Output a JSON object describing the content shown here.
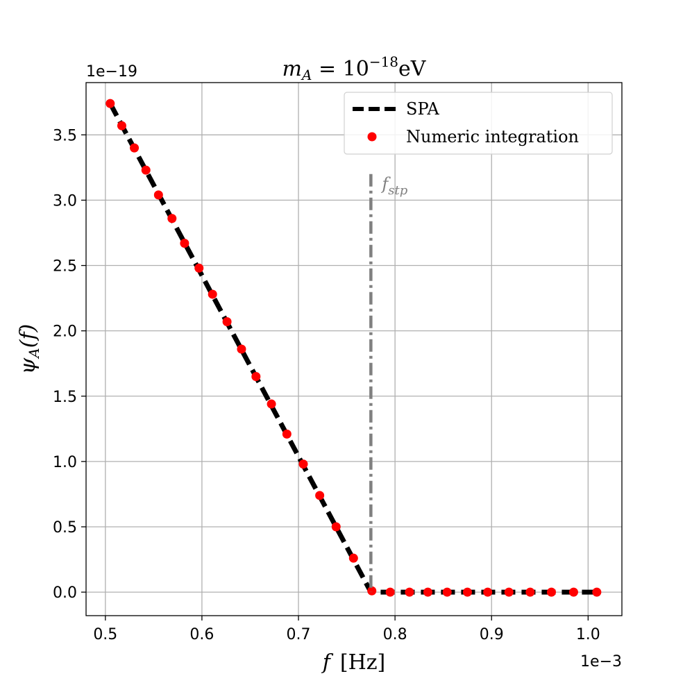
{
  "chart_data": {
    "type": "line",
    "title": "m_A = 10^-18 eV",
    "title_parts": {
      "base": "m",
      "sub": "A",
      "eq": " = 10",
      "sup": "−18",
      "unit": "eV"
    },
    "xlabel": "f  [Hz]",
    "xlabel_parts": {
      "var": "f",
      "unit": "[Hz]"
    },
    "ylabel": "ψ_A(f)",
    "ylabel_parts": {
      "base": "ψ",
      "sub": "A",
      "arg": "(f)"
    },
    "x_offset_label": "1e−3",
    "y_offset_label": "1e−19",
    "xlim": [
      0.48,
      1.035
    ],
    "ylim": [
      -0.18,
      3.9
    ],
    "x_ticks": [
      0.5,
      0.6,
      0.7,
      0.8,
      0.9,
      1.0
    ],
    "x_tick_labels": [
      "0.5",
      "0.6",
      "0.7",
      "0.8",
      "0.9",
      "1.0"
    ],
    "y_ticks": [
      0.0,
      0.5,
      1.0,
      1.5,
      2.0,
      2.5,
      3.0,
      3.5
    ],
    "y_tick_labels": [
      "0.0",
      "0.5",
      "1.0",
      "1.5",
      "2.0",
      "2.5",
      "3.0",
      "3.5"
    ],
    "grid": true,
    "legend_position": "top-right",
    "series": [
      {
        "name": "SPA",
        "style": "dashed",
        "color": "#000000",
        "x": [
          0.505,
          0.775,
          0.775,
          1.01
        ],
        "y": [
          3.74,
          0.0,
          0.0,
          0.0
        ]
      },
      {
        "name": "Numeric integration",
        "style": "markers",
        "color": "#ff0000",
        "x": [
          0.505,
          0.517,
          0.53,
          0.542,
          0.555,
          0.569,
          0.582,
          0.597,
          0.611,
          0.626,
          0.641,
          0.656,
          0.672,
          0.688,
          0.705,
          0.722,
          0.739,
          0.757,
          0.776,
          0.795,
          0.815,
          0.834,
          0.854,
          0.875,
          0.896,
          0.918,
          0.94,
          0.962,
          0.985,
          1.009
        ],
        "y": [
          3.74,
          3.57,
          3.4,
          3.23,
          3.04,
          2.86,
          2.67,
          2.48,
          2.28,
          2.07,
          1.86,
          1.65,
          1.44,
          1.21,
          0.98,
          0.74,
          0.5,
          0.26,
          0.01,
          0.0,
          0.0,
          0.0,
          0.0,
          0.0,
          0.0,
          0.0,
          0.0,
          0.0,
          0.0,
          0.0
        ]
      }
    ],
    "annotations": [
      {
        "name": "f_stp",
        "label": "f",
        "label_sub": "stp",
        "x": 0.775,
        "y_range": [
          0.0,
          3.2
        ],
        "style": "dashdot",
        "color": "#808080"
      }
    ]
  }
}
